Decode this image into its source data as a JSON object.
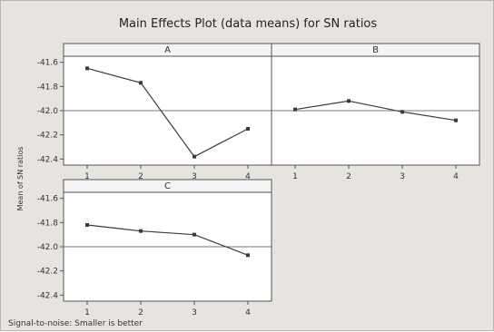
{
  "chart_data": {
    "type": "line",
    "title": "Main Effects Plot (data means) for SN ratios",
    "ylabel": "Mean of SN ratios",
    "footnote": "Signal-to-noise: Smaller is better",
    "categories": [
      "1",
      "2",
      "3",
      "4"
    ],
    "ylim": [
      -42.45,
      -41.55
    ],
    "yticks": [
      -41.6,
      -41.8,
      -42.0,
      -42.2,
      -42.4
    ],
    "yticklabels": [
      "-41.6",
      "-41.8",
      "-42.0",
      "-42.2",
      "-42.4"
    ],
    "reference_mean": -42.0,
    "grid": false,
    "panels": [
      {
        "name": "A",
        "values": [
          -41.65,
          -41.77,
          -42.38,
          -42.15
        ]
      },
      {
        "name": "B",
        "values": [
          -41.99,
          -41.92,
          -42.01,
          -42.08
        ]
      },
      {
        "name": "C",
        "values": [
          -41.82,
          -41.87,
          -41.9,
          -42.07
        ]
      }
    ],
    "colors": {
      "line": "#3a3a3a",
      "strip": "#f4f4f4",
      "panel": "#ffffff"
    }
  }
}
